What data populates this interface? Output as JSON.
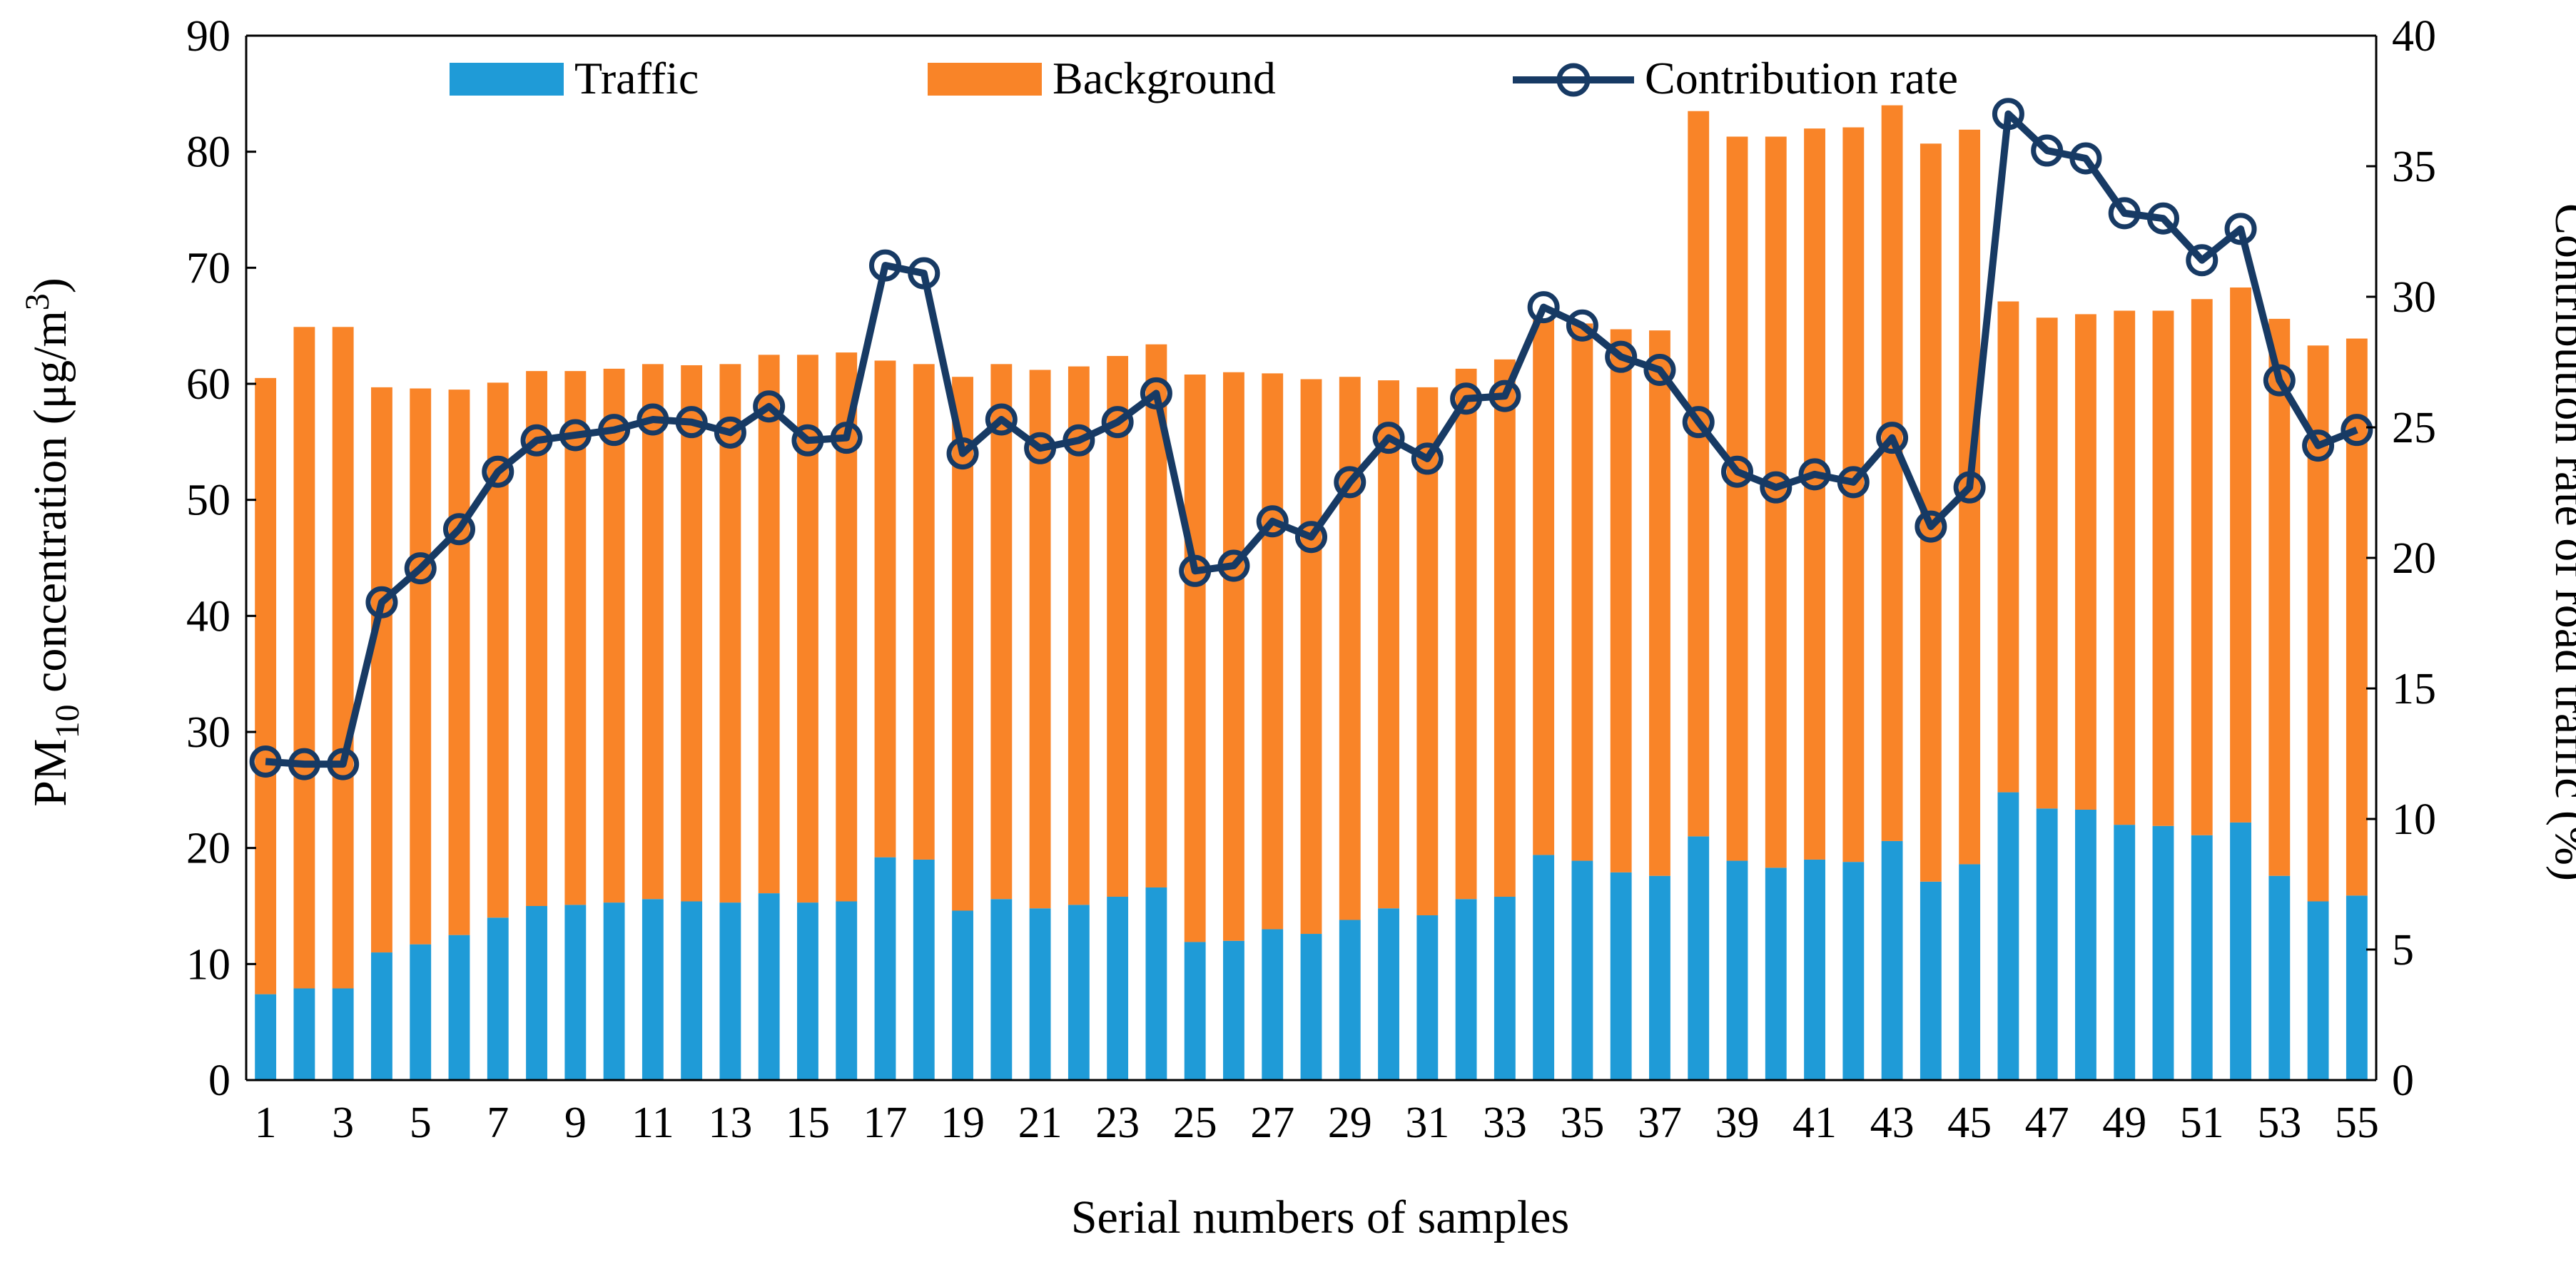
{
  "chart_data": {
    "type": "bar",
    "stacked": true,
    "secondary_type": "line",
    "title": "",
    "xlabel": "Serial numbers of samples",
    "ylabel": {
      "prefix": "PM",
      "subscript": "10",
      "middle": " concentration  (μg/m",
      "superscript": "3",
      "suffix": ")"
    },
    "y2label": "Contribution rate of  road traffic (%)",
    "ylim": [
      0,
      90
    ],
    "y2lim": [
      0,
      40
    ],
    "yticks": [
      "0",
      "10",
      "20",
      "30",
      "40",
      "50",
      "60",
      "70",
      "80",
      "90"
    ],
    "y2ticks": [
      "0",
      "5",
      "10",
      "15",
      "20",
      "25",
      "30",
      "35",
      "40"
    ],
    "xtick_labels": [
      "1",
      "3",
      "5",
      "7",
      "9",
      "11",
      "13",
      "15",
      "17",
      "19",
      "21",
      "23",
      "25",
      "27",
      "29",
      "31",
      "33",
      "35",
      "37",
      "39",
      "41",
      "43",
      "45",
      "47",
      "49",
      "51",
      "53",
      "55"
    ],
    "x": [
      1,
      2,
      3,
      4,
      5,
      6,
      7,
      8,
      9,
      10,
      11,
      12,
      13,
      14,
      15,
      16,
      17,
      18,
      19,
      20,
      21,
      22,
      23,
      24,
      25,
      26,
      27,
      28,
      29,
      30,
      31,
      32,
      33,
      34,
      35,
      36,
      37,
      38,
      39,
      40,
      41,
      42,
      43,
      44,
      45,
      46,
      47,
      48,
      49,
      50,
      51,
      52,
      53,
      54,
      55
    ],
    "series": [
      {
        "name": "Traffic",
        "color": "#1f9bd7",
        "axis": "left",
        "values": [
          7.4,
          7.9,
          7.9,
          11.0,
          11.7,
          12.5,
          14.0,
          15.0,
          15.1,
          15.3,
          15.6,
          15.4,
          15.3,
          16.1,
          15.3,
          15.4,
          19.2,
          19.0,
          14.6,
          15.6,
          14.8,
          15.1,
          15.8,
          16.6,
          11.9,
          12.0,
          13.0,
          12.6,
          13.8,
          14.8,
          14.2,
          15.6,
          15.8,
          19.4,
          18.9,
          17.9,
          17.6,
          21.0,
          18.9,
          18.3,
          19.0,
          18.8,
          20.6,
          17.1,
          18.6,
          24.8,
          23.4,
          23.3,
          22.0,
          21.9,
          21.1,
          22.2,
          17.6,
          15.4,
          15.9
        ]
      },
      {
        "name": "Background",
        "color": "#f98428",
        "axis": "left",
        "values": [
          53.1,
          57.0,
          57.0,
          48.7,
          47.9,
          47.0,
          46.1,
          46.1,
          46.0,
          46.0,
          46.1,
          46.2,
          46.4,
          46.4,
          47.2,
          47.3,
          42.8,
          42.7,
          46.0,
          46.1,
          46.4,
          46.4,
          46.6,
          46.8,
          48.9,
          49.0,
          47.9,
          47.8,
          46.8,
          45.5,
          45.5,
          45.7,
          46.3,
          46.2,
          46.3,
          46.8,
          47.0,
          62.5,
          62.4,
          63.0,
          63.0,
          63.3,
          63.4,
          63.6,
          63.3,
          42.3,
          42.3,
          42.7,
          44.3,
          44.4,
          46.2,
          46.1,
          48.0,
          47.9,
          48.0
        ]
      },
      {
        "name": "Contribution rate",
        "color": "#173a64",
        "axis": "right",
        "values": [
          12.2,
          12.1,
          12.1,
          18.3,
          19.6,
          21.1,
          23.3,
          24.5,
          24.7,
          24.9,
          25.3,
          25.2,
          24.8,
          25.8,
          24.5,
          24.6,
          31.2,
          30.9,
          24.0,
          25.3,
          24.2,
          24.5,
          25.2,
          26.3,
          19.5,
          19.7,
          21.4,
          20.8,
          22.9,
          24.6,
          23.8,
          26.1,
          26.2,
          29.6,
          28.9,
          27.7,
          27.2,
          25.2,
          23.3,
          22.7,
          23.2,
          22.9,
          24.6,
          21.2,
          22.7,
          37.0,
          35.6,
          35.3,
          33.2,
          33.0,
          31.4,
          32.6,
          26.8,
          24.3,
          24.9
        ]
      }
    ],
    "legend": {
      "position": "top",
      "entries": [
        "Traffic",
        "Background",
        "Contribution rate"
      ]
    },
    "grid": false
  }
}
